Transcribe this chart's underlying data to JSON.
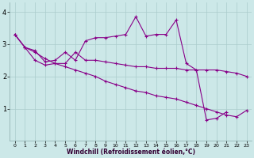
{
  "xlabel": "Windchill (Refroidissement éolien,°C)",
  "bg_color": "#cce8e8",
  "line_color": "#880088",
  "xlim": [
    -0.5,
    23.5
  ],
  "ylim": [
    0,
    4.3
  ],
  "yticks": [
    1,
    2,
    3,
    4
  ],
  "xticks": [
    0,
    1,
    2,
    3,
    4,
    5,
    6,
    7,
    8,
    9,
    10,
    11,
    12,
    13,
    14,
    15,
    16,
    17,
    18,
    19,
    20,
    21,
    22,
    23
  ],
  "series": [
    {
      "x": [
        0,
        1,
        2,
        3,
        4,
        5,
        6,
        7,
        8,
        9,
        10,
        11,
        12,
        13,
        14,
        15,
        16,
        17,
        18,
        19,
        20,
        21,
        22,
        23
      ],
      "y": [
        3.3,
        2.9,
        2.8,
        2.45,
        2.5,
        2.75,
        2.5,
        3.1,
        3.2,
        3.2,
        3.25,
        3.3,
        3.85,
        3.25,
        3.3,
        3.3,
        3.75,
        2.4,
        2.2,
        0.65,
        0.7,
        0.9,
        null,
        null
      ]
    },
    {
      "x": [
        0,
        1,
        2,
        3,
        4,
        5,
        6,
        7,
        8,
        9,
        10,
        11,
        12,
        13,
        14,
        15,
        16,
        17,
        18,
        19,
        20,
        21,
        22,
        23
      ],
      "y": [
        3.3,
        2.9,
        2.75,
        2.55,
        2.4,
        2.4,
        2.75,
        2.5,
        2.5,
        2.45,
        2.4,
        2.35,
        2.3,
        2.3,
        2.25,
        2.25,
        2.25,
        2.2,
        2.2,
        2.2,
        2.2,
        2.15,
        2.1,
        2.0
      ]
    },
    {
      "x": [
        0,
        1,
        2,
        3,
        4,
        5,
        6,
        7,
        8,
        9,
        10,
        11,
        12,
        13,
        14,
        15,
        16,
        17,
        18,
        19,
        20,
        21,
        22,
        23
      ],
      "y": [
        3.3,
        2.9,
        2.5,
        2.35,
        2.4,
        2.3,
        2.2,
        2.1,
        2.0,
        1.85,
        1.75,
        1.65,
        1.55,
        1.5,
        1.4,
        1.35,
        1.3,
        1.2,
        1.1,
        1.0,
        0.9,
        0.8,
        0.75,
        0.95
      ]
    }
  ]
}
